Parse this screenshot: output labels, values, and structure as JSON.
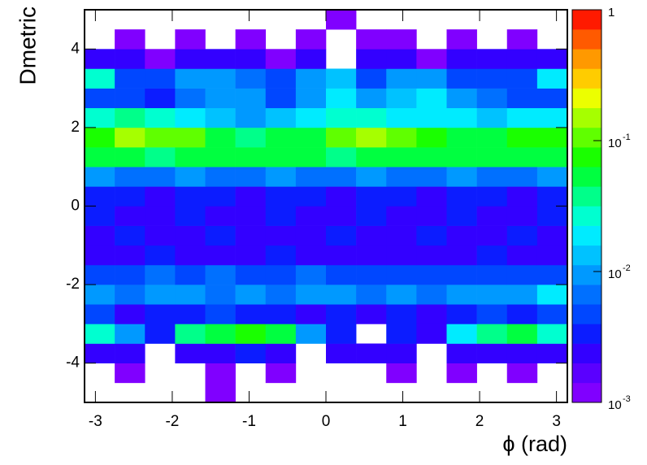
{
  "chart_data": {
    "type": "heatmap",
    "x_label": "ϕ (rad)",
    "y_label": "Dmetric",
    "xlim": [
      -3.1416,
      3.1416
    ],
    "ylim": [
      -5,
      5
    ],
    "xticks": [
      -3,
      -2,
      -1,
      0,
      1,
      2,
      3
    ],
    "yticks": [
      -4,
      -2,
      0,
      2,
      4
    ],
    "zlim": [
      0.001,
      1
    ],
    "zlog": true,
    "zticks": [
      {
        "value": 0.001,
        "label": "10",
        "exponent": "-3"
      },
      {
        "value": 0.01,
        "label": "10",
        "exponent": "-2"
      },
      {
        "value": 0.1,
        "label": "10",
        "exponent": "-1"
      },
      1
    ],
    "palette": [
      "#8000ff",
      "#5a00ff",
      "#3300ff",
      "#0c1cff",
      "#0047ff",
      "#0070ff",
      "#0099ff",
      "#00c2ff",
      "#00ebff",
      "#00ffd0",
      "#00ff8a",
      "#00ff40",
      "#1aff00",
      "#60ff00",
      "#a6ff00",
      "#ecff00",
      "#ffcc00",
      "#ff9900",
      "#ff5a00",
      "#ff1a00"
    ],
    "z": [
      [
        null,
        null,
        null,
        null,
        0.001,
        null,
        null,
        null,
        null,
        null,
        null,
        null,
        null,
        null,
        null,
        null
      ],
      [
        null,
        0.001,
        null,
        null,
        0.001,
        null,
        0.001,
        null,
        null,
        null,
        0.001,
        null,
        0.001,
        null,
        0.001,
        null
      ],
      [
        0.002,
        0.002,
        null,
        0.002,
        0.002,
        0.003,
        0.002,
        null,
        0.002,
        0.002,
        0.002,
        null,
        0.002,
        0.002,
        0.002,
        0.002
      ],
      [
        0.03,
        0.01,
        0.003,
        0.04,
        0.06,
        0.07,
        0.05,
        0.01,
        0.003,
        null,
        0.003,
        0.002,
        0.02,
        0.04,
        0.06,
        0.03
      ],
      [
        0.004,
        0.002,
        0.003,
        0.003,
        0.004,
        0.003,
        0.003,
        0.002,
        0.003,
        0.002,
        0.003,
        0.002,
        0.003,
        0.004,
        0.003,
        0.005
      ],
      [
        0.008,
        0.007,
        0.008,
        0.008,
        0.007,
        0.008,
        0.007,
        0.008,
        0.008,
        0.007,
        0.008,
        0.007,
        0.008,
        0.008,
        0.01,
        0.02
      ],
      [
        0.005,
        0.005,
        0.006,
        0.005,
        0.006,
        0.005,
        0.005,
        0.006,
        0.005,
        0.005,
        0.004,
        0.005,
        0.005,
        0.005,
        0.005,
        0.004
      ],
      [
        0.002,
        0.002,
        0.003,
        0.002,
        0.002,
        0.002,
        0.003,
        0.002,
        0.002,
        0.002,
        0.002,
        0.002,
        0.002,
        0.003,
        0.002,
        0.002
      ],
      [
        0.002,
        0.003,
        0.002,
        0.002,
        0.003,
        0.002,
        0.002,
        0.002,
        0.003,
        0.002,
        0.002,
        0.003,
        0.002,
        0.002,
        0.003,
        0.002
      ],
      [
        0.003,
        0.002,
        0.002,
        0.003,
        0.002,
        0.002,
        0.003,
        0.002,
        0.002,
        0.003,
        0.002,
        0.002,
        0.003,
        0.002,
        0.002,
        0.003
      ],
      [
        0.003,
        0.003,
        0.002,
        0.003,
        0.003,
        0.002,
        0.003,
        0.003,
        0.002,
        0.003,
        0.003,
        0.002,
        0.003,
        0.003,
        0.002,
        0.003
      ],
      [
        0.008,
        0.007,
        0.006,
        0.008,
        0.007,
        0.006,
        0.008,
        0.007,
        0.006,
        0.008,
        0.007,
        0.006,
        0.008,
        0.007,
        0.006,
        0.008
      ],
      [
        0.06,
        0.05,
        0.04,
        0.05,
        0.06,
        0.05,
        0.06,
        0.05,
        0.04,
        0.05,
        0.06,
        0.05,
        0.06,
        0.05,
        0.05,
        0.06
      ],
      [
        0.08,
        0.15,
        0.12,
        0.1,
        0.05,
        0.04,
        0.05,
        0.06,
        0.1,
        0.15,
        0.12,
        0.08,
        0.06,
        0.06,
        0.07,
        0.08
      ],
      [
        0.03,
        0.04,
        0.03,
        0.02,
        0.015,
        0.01,
        0.015,
        0.02,
        0.03,
        0.03,
        0.02,
        0.02,
        0.02,
        0.015,
        0.02,
        0.02
      ],
      [
        0.005,
        0.004,
        0.003,
        0.006,
        0.008,
        0.01,
        0.005,
        0.01,
        0.02,
        0.01,
        0.015,
        0.02,
        0.01,
        0.006,
        0.005,
        0.004
      ],
      [
        0.03,
        0.005,
        0.004,
        0.008,
        0.01,
        0.006,
        0.005,
        0.008,
        0.015,
        0.005,
        0.01,
        0.008,
        0.005,
        0.004,
        0.005,
        0.02
      ],
      [
        0.002,
        0.002,
        0.001,
        0.002,
        0.002,
        0.002,
        0.001,
        0.002,
        null,
        0.002,
        0.002,
        0.001,
        0.002,
        0.002,
        0.002,
        0.002
      ],
      [
        null,
        0.001,
        null,
        0.001,
        null,
        0.001,
        null,
        0.001,
        null,
        0.001,
        0.001,
        null,
        0.001,
        null,
        0.001,
        null
      ],
      [
        null,
        null,
        null,
        null,
        null,
        null,
        null,
        null,
        0.001,
        null,
        null,
        null,
        null,
        null,
        null,
        null
      ]
    ]
  }
}
